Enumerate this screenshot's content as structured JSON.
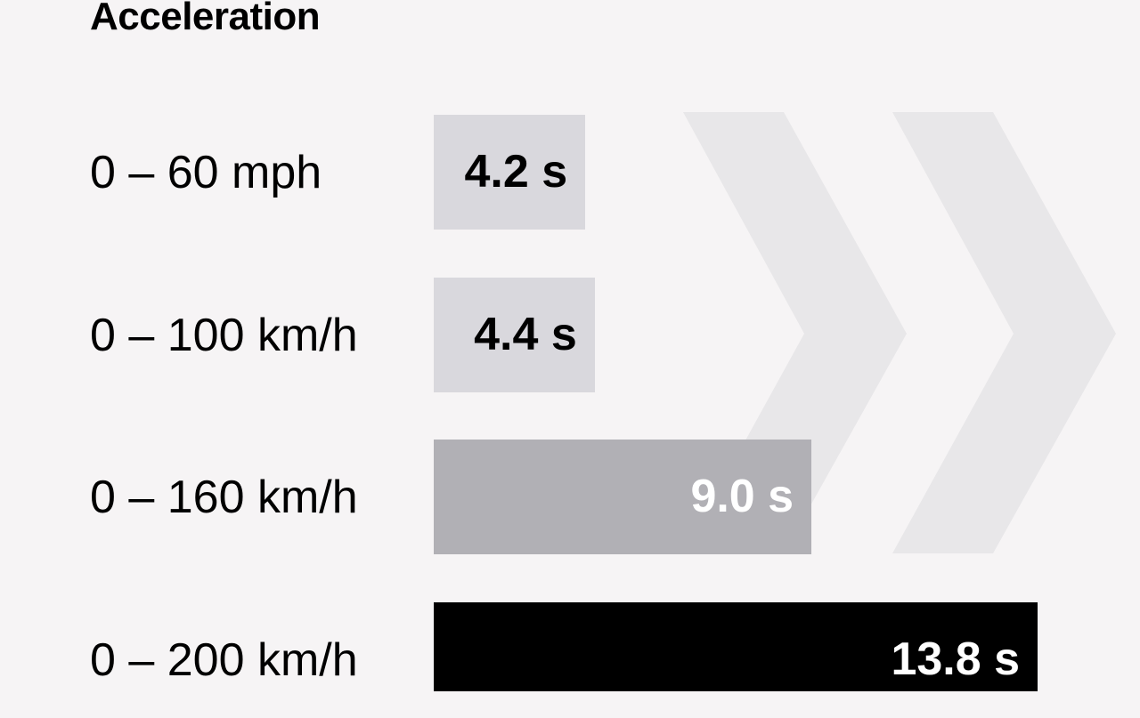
{
  "chart_data": {
    "type": "bar",
    "orientation": "horizontal",
    "title": "Acceleration",
    "categories": [
      "0 – 60 mph",
      "0 – 100 km/h",
      "0 – 160 km/h",
      "0 – 200 km/h"
    ],
    "values": [
      4.2,
      4.4,
      9.0,
      13.8
    ],
    "value_labels": [
      "4.2 s",
      "4.4 s",
      "9.0 s",
      "13.8 s"
    ],
    "unit": "s",
    "bar_colors": [
      "#d9d8dd",
      "#d9d8dd",
      "#b1b0b5",
      "#000000"
    ],
    "label_colors": [
      "#000000",
      "#000000",
      "#ffffff",
      "#ffffff"
    ],
    "grid": false,
    "background": "#f6f4f5",
    "decoration_color": "#e8e7e9"
  }
}
